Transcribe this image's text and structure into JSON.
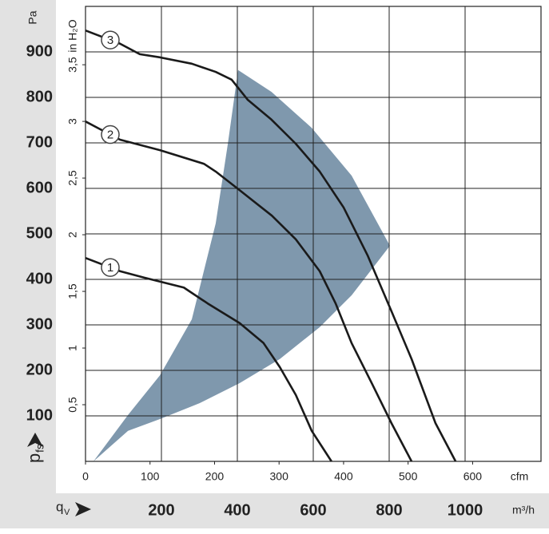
{
  "chart_data": {
    "type": "line",
    "xlabel": "m³/h",
    "x2label": "cfm",
    "ylabel": {
      "main": "p",
      "sub": "fs"
    },
    "xsymbol": {
      "main": "q",
      "sub": "V"
    },
    "yunit": "Pa",
    "y2label": "in H₂O",
    "xlim": [
      0,
      1200
    ],
    "xticks": [
      200,
      400,
      600,
      800,
      1000
    ],
    "x2lim": [
      0,
      706
    ],
    "x2ticks": [
      0,
      100,
      200,
      300,
      400,
      500,
      600
    ],
    "ylim": [
      0,
      1000
    ],
    "yticks": [
      100,
      200,
      300,
      400,
      500,
      600,
      700,
      800,
      900
    ],
    "y2lim": [
      0,
      4.015
    ],
    "y2ticks": [
      {
        "value": 0.5,
        "label": "0,5"
      },
      1,
      {
        "value": 1.5,
        "label": "1,5"
      },
      2,
      {
        "value": 2.5,
        "label": "2,5"
      },
      3,
      {
        "value": 3.5,
        "label": "3,5"
      }
    ],
    "grid": true,
    "region": {
      "color": "#7f98ad",
      "x": [
        21,
        112,
        196,
        280,
        343,
        375,
        402,
        490,
        596,
        701,
        802,
        701,
        617,
        512,
        406,
        301,
        196,
        112
      ],
      "y": [
        0,
        102,
        189,
        312,
        523,
        698,
        860,
        812,
        733,
        628,
        474,
        365,
        295,
        225,
        172,
        128,
        93,
        67
      ]
    },
    "series": [
      {
        "name": "1",
        "color": "#1a1a1a",
        "x": [
          0,
          91,
          154,
          259,
          322,
          406,
          469,
          512,
          554,
          596,
          648
        ],
        "values": [
          447,
          418,
          404,
          382,
          347,
          304,
          260,
          207,
          146,
          67,
          0
        ]
      },
      {
        "name": "2",
        "color": "#1a1a1a",
        "x": [
          0,
          91,
          196,
          312,
          343,
          406,
          491,
          554,
          617,
          659,
          701,
          754,
          806,
          859
        ],
        "values": [
          747,
          707,
          684,
          654,
          637,
          596,
          540,
          488,
          418,
          347,
          260,
          172,
          84,
          0
        ]
      },
      {
        "name": "3",
        "color": "#1a1a1a",
        "x": [
          0,
          91,
          143,
          196,
          280,
          343,
          385,
          427,
          490,
          554,
          617,
          680,
          743,
          806,
          859,
          922,
          975
        ],
        "values": [
          947,
          918,
          895,
          888,
          874,
          856,
          839,
          795,
          751,
          698,
          637,
          558,
          453,
          330,
          225,
          84,
          0
        ]
      }
    ]
  }
}
